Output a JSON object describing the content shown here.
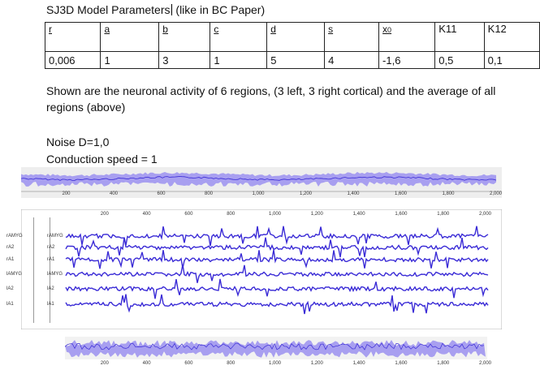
{
  "header": {
    "title_before_caret": "SJ3D Model Parameters",
    "title_after_caret": " (like in BC Paper)"
  },
  "params": {
    "headers": [
      "r",
      "a",
      "b",
      "c",
      "d",
      "s",
      "x0",
      "K11",
      "K12"
    ],
    "values": [
      "0,006",
      "1",
      "3",
      "1",
      "5",
      "4",
      "-1,6",
      "0,5",
      "0,1"
    ]
  },
  "description": "Shown are the neuronal activity of 6 regions, (3 left, 3 right cortical) and the average of all regions (above)",
  "noise": "Noise D=1,0",
  "speed": "Conduction speed = 1",
  "axis_ticks": [
    "200",
    "400",
    "600",
    "800",
    "1,000",
    "1,200",
    "1,400",
    "1,600",
    "1,800",
    "2,000"
  ],
  "channels": [
    "rAMYG",
    "rA2",
    "rA1",
    "lAMYG",
    "lA2",
    "lA1"
  ],
  "colors": {
    "trace": "#3a2bd6",
    "band": "#a89ff0",
    "panel_bg": "#eeeeee"
  }
}
